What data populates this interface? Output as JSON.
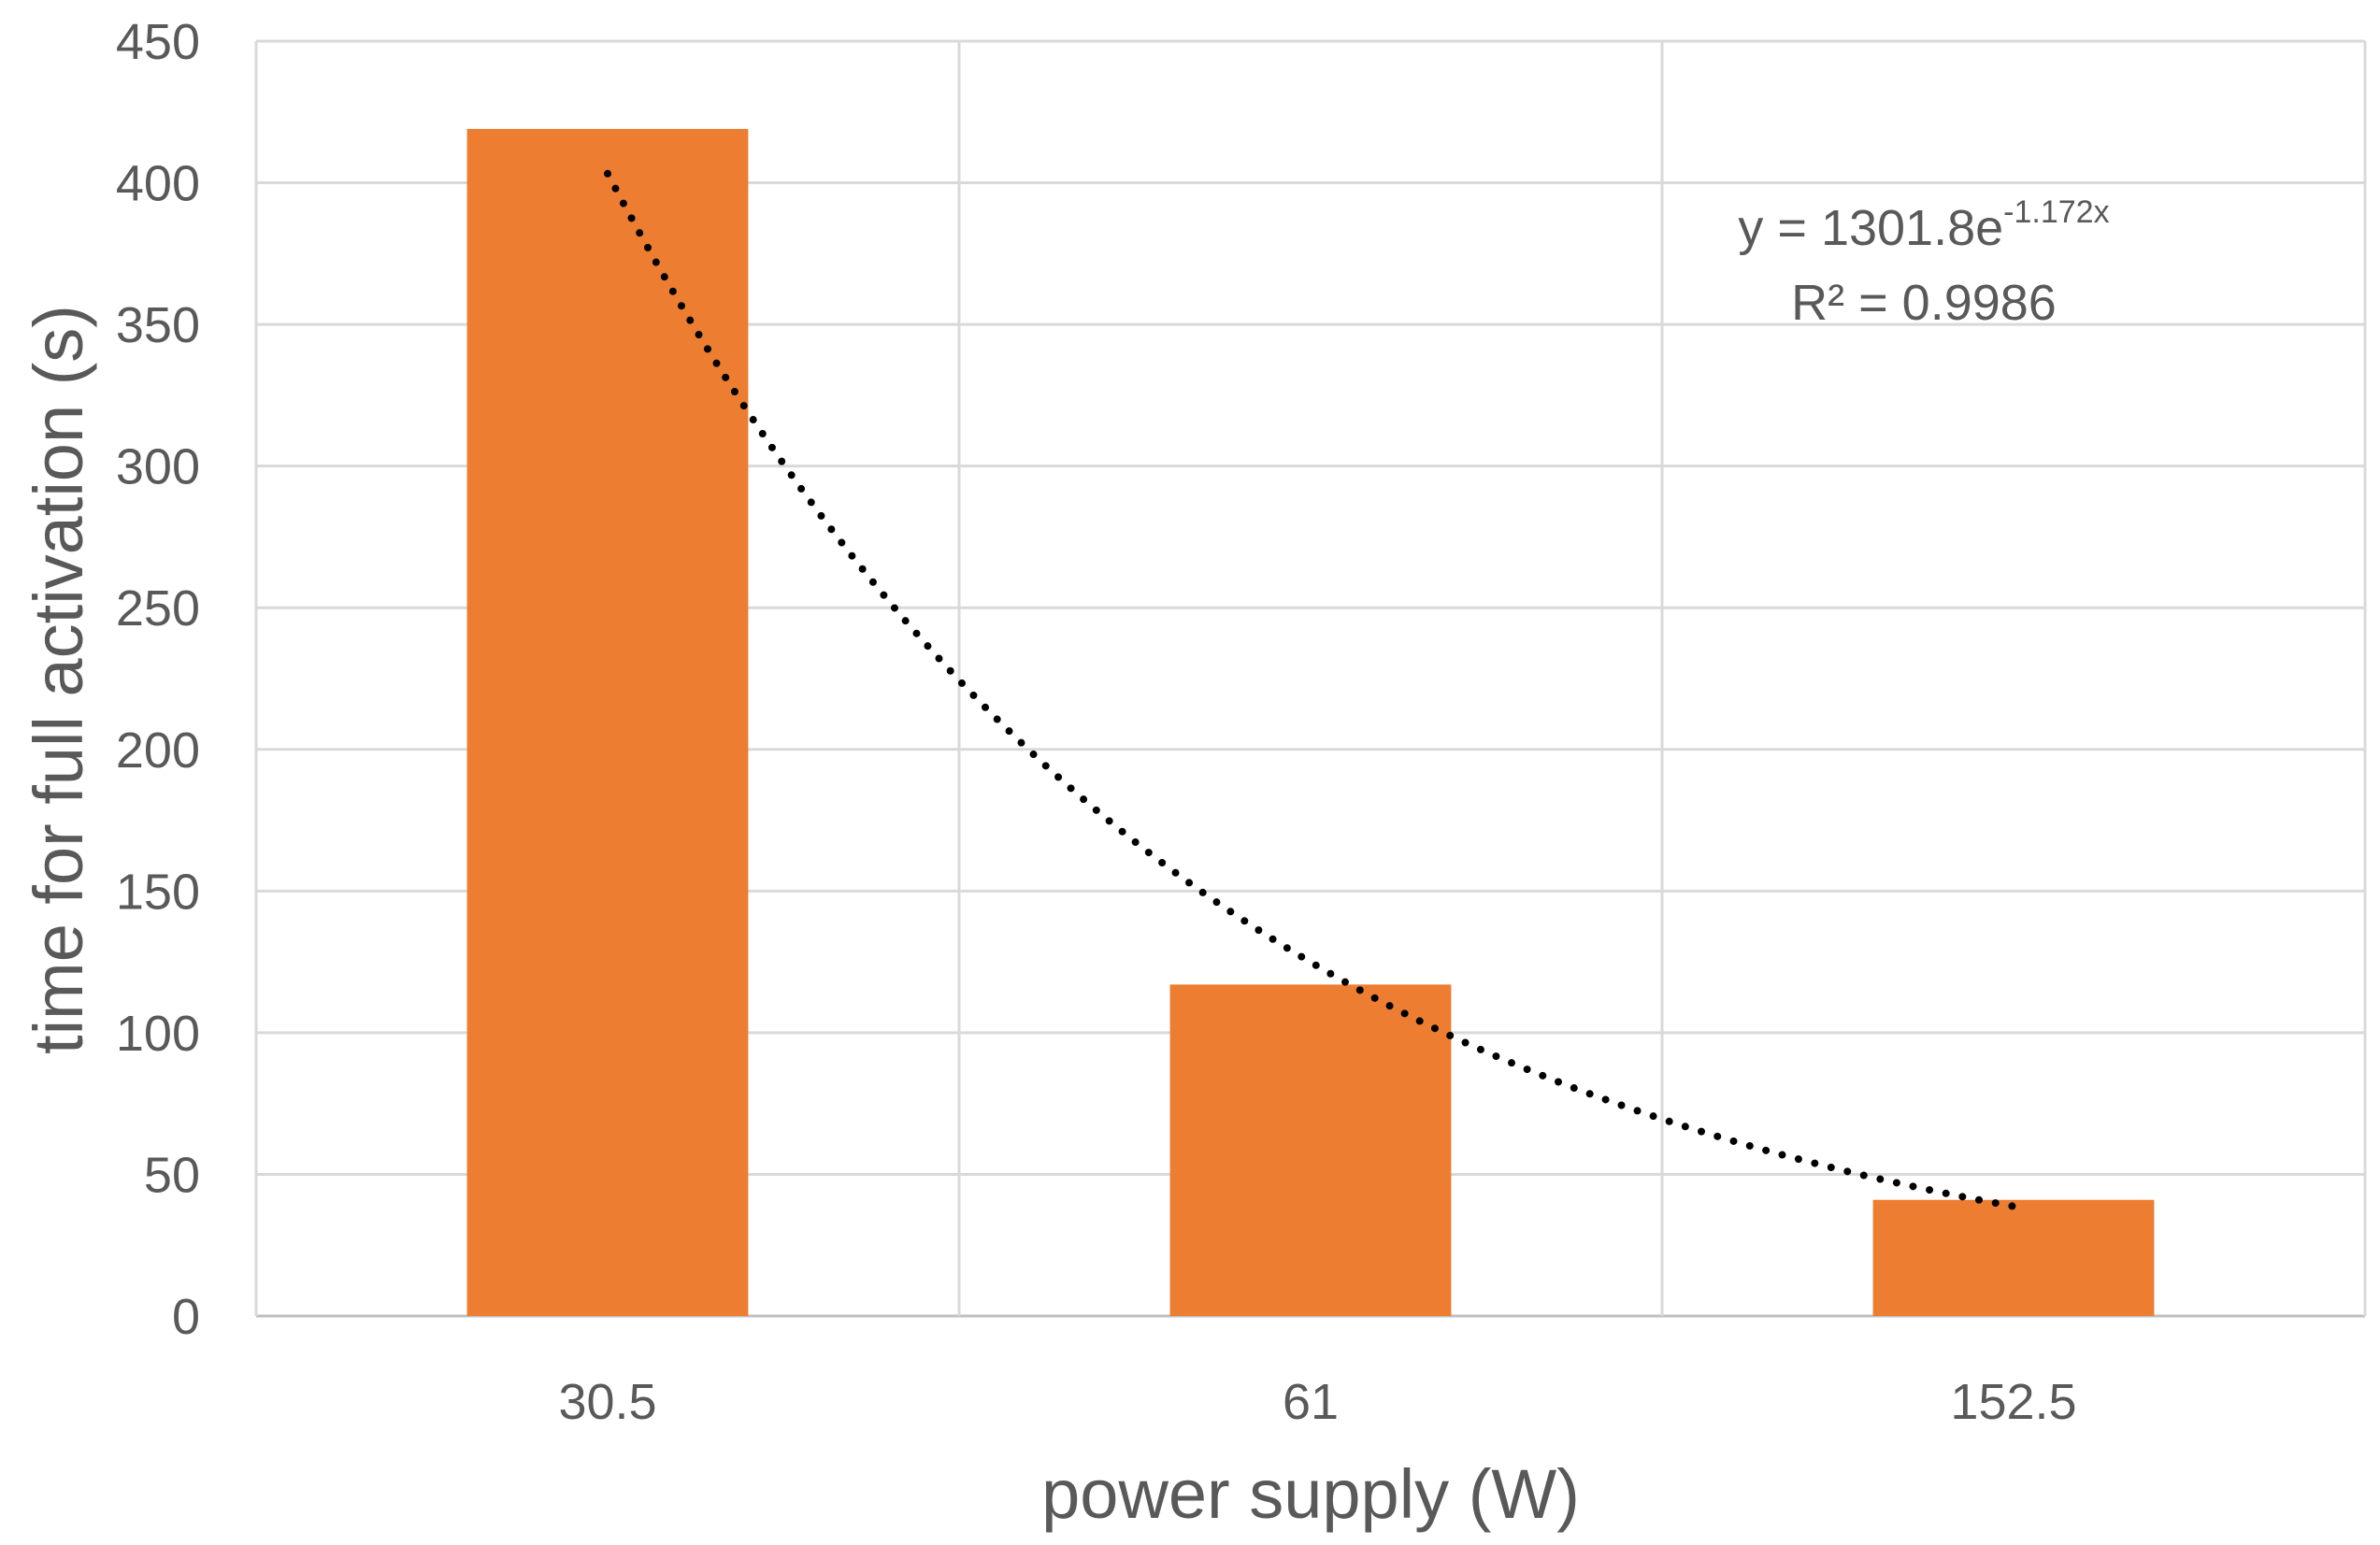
{
  "chart_data": {
    "type": "bar",
    "categories": [
      "30.5",
      "61",
      "152.5"
    ],
    "values": [
      419,
      117,
      41
    ],
    "xlabel": "power supply (W)",
    "ylabel": "time for  full activation (s)",
    "ylim": [
      0,
      450
    ],
    "yticks": [
      "0",
      "50",
      "100",
      "150",
      "200",
      "250",
      "300",
      "350",
      "400",
      "450"
    ],
    "grid": true,
    "bar_color": "#ED7D31",
    "trendline": {
      "type": "exponential",
      "style": "dotted",
      "color": "#000000",
      "a": 1301.8,
      "b": -1.172,
      "equation_prefix": "y = 1301.8e",
      "equation_exponent": "-1.172x",
      "r_squared_text": "R² = 0.9986"
    }
  }
}
